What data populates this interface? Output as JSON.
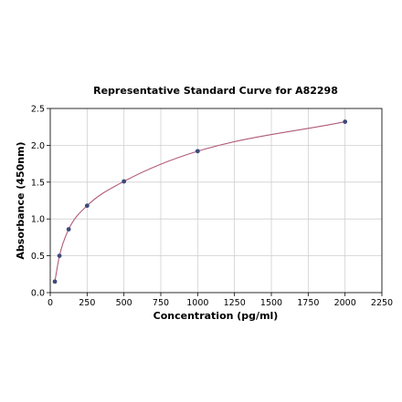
{
  "chart_data": {
    "type": "scatter",
    "title": "Representative Standard Curve for A82298",
    "xlabel": "Concentration (pg/ml)",
    "ylabel": "Absorbance (450nm)",
    "xlim": [
      0,
      2250
    ],
    "ylim": [
      0,
      2.5
    ],
    "xticks": [
      0,
      250,
      500,
      750,
      1000,
      1250,
      1500,
      1750,
      2000,
      2250
    ],
    "yticks": [
      0.0,
      0.5,
      1.0,
      1.5,
      2.0,
      2.5
    ],
    "xtick_labels": [
      "0",
      "250",
      "500",
      "750",
      "1000",
      "1250",
      "1500",
      "1750",
      "2000",
      "2250"
    ],
    "ytick_labels": [
      "0.0",
      "0.5",
      "1.0",
      "1.5",
      "2.0",
      "2.5"
    ],
    "grid": true,
    "series": [
      {
        "x": [
          31.25,
          62.5,
          125,
          250,
          500,
          1000,
          2000
        ],
        "y": [
          0.15,
          0.5,
          0.86,
          1.18,
          1.51,
          1.92,
          2.32
        ]
      }
    ],
    "fit_curve": true,
    "colors": {
      "points": "#3d4a7a",
      "curve": "#b05a78"
    }
  }
}
